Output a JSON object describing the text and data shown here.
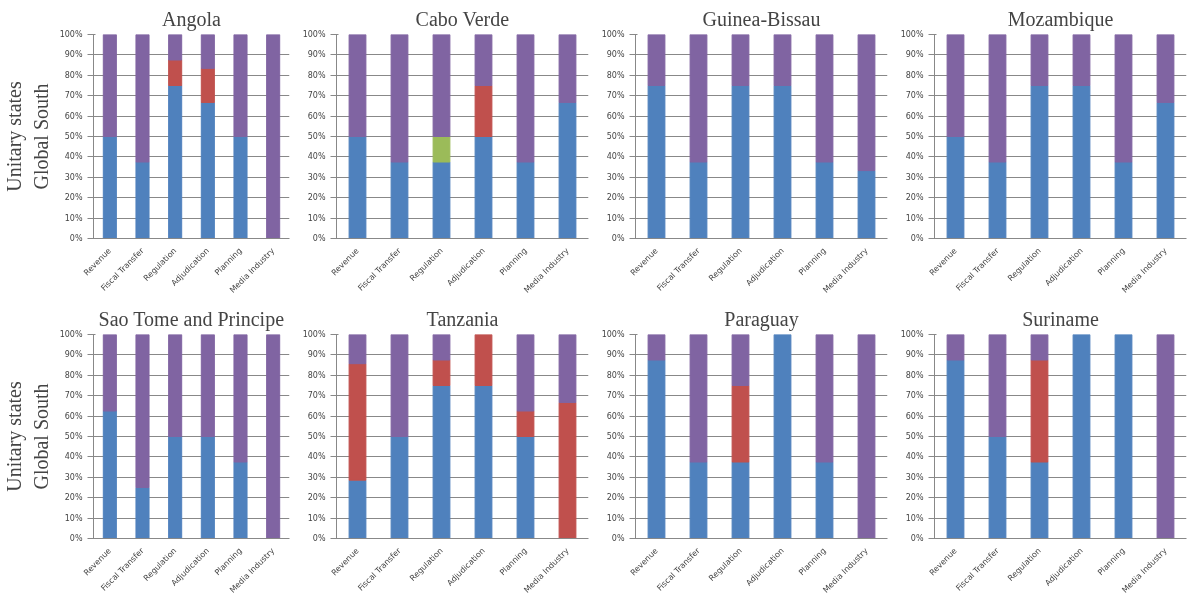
{
  "chart_data": [
    {
      "type": "bar",
      "title": "Angola",
      "ylabel": "Unitary states\nGlobal South",
      "stacked": true,
      "categories": [
        "Revenue",
        "Fiscal Transfer",
        "Regulation",
        "Adjudication",
        "Planning",
        "Media Industry"
      ],
      "ylim": [
        0,
        100
      ],
      "yticks": [
        {
          "value": 0,
          "label": "0%"
        },
        {
          "value": 10,
          "label": "10%"
        },
        {
          "value": 20,
          "label": "20%"
        },
        {
          "value": 30,
          "label": "30%"
        },
        {
          "value": 40,
          "label": "40%"
        },
        {
          "value": 50,
          "label": "50%"
        },
        {
          "value": 60,
          "label": "60%"
        },
        {
          "value": 70,
          "label": "70%"
        },
        {
          "value": 80,
          "label": "80%"
        },
        {
          "value": 90,
          "label": "90%"
        },
        {
          "value": 100,
          "label": "100%"
        }
      ],
      "grid": "y",
      "series": [
        {
          "color": "#4f81bd",
          "values": [
            50,
            37.5,
            75,
            66.7,
            50,
            null
          ]
        },
        {
          "color": "#c0504d",
          "values": [
            null,
            null,
            12.5,
            16.7,
            null,
            null
          ]
        },
        {
          "color": "#8064a2",
          "values": [
            50,
            62.5,
            12.5,
            16.6,
            50,
            100
          ]
        }
      ]
    },
    {
      "type": "bar",
      "title": "Cabo Verde",
      "stacked": true,
      "categories": [
        "Revenue",
        "Fiscal Transfer",
        "Regulation",
        "Adjudication",
        "Planning",
        "Media Industry"
      ],
      "ylim": [
        0,
        100
      ],
      "yticks": [
        {
          "value": 0,
          "label": "0%"
        },
        {
          "value": 10,
          "label": "10%"
        },
        {
          "value": 20,
          "label": "20%"
        },
        {
          "value": 30,
          "label": "30%"
        },
        {
          "value": 40,
          "label": "40%"
        },
        {
          "value": 50,
          "label": "50%"
        },
        {
          "value": 60,
          "label": "60%"
        },
        {
          "value": 70,
          "label": "70%"
        },
        {
          "value": 80,
          "label": "80%"
        },
        {
          "value": 90,
          "label": "90%"
        },
        {
          "value": 100,
          "label": "100%"
        }
      ],
      "grid": "y",
      "series": [
        {
          "color": "#4f81bd",
          "values": [
            50,
            37.5,
            37.5,
            50,
            37.5,
            66.7
          ]
        },
        {
          "color": "#c0504d",
          "values": [
            null,
            null,
            null,
            25,
            null,
            null
          ]
        },
        {
          "color": "#9bbb59",
          "values": [
            null,
            null,
            12.5,
            null,
            null,
            null
          ]
        },
        {
          "color": "#8064a2",
          "values": [
            50,
            62.5,
            50,
            25,
            62.5,
            33.3
          ]
        }
      ]
    },
    {
      "type": "bar",
      "title": "Guinea-Bissau",
      "stacked": true,
      "categories": [
        "Revenue",
        "Fiscal Transfer",
        "Regulation",
        "Adjudication",
        "Planning",
        "Media Industry"
      ],
      "ylim": [
        0,
        100
      ],
      "yticks": [
        {
          "value": 0,
          "label": "0%"
        },
        {
          "value": 10,
          "label": "10%"
        },
        {
          "value": 20,
          "label": "20%"
        },
        {
          "value": 30,
          "label": "30%"
        },
        {
          "value": 40,
          "label": "40%"
        },
        {
          "value": 50,
          "label": "50%"
        },
        {
          "value": 60,
          "label": "60%"
        },
        {
          "value": 70,
          "label": "70%"
        },
        {
          "value": 80,
          "label": "80%"
        },
        {
          "value": 90,
          "label": "90%"
        },
        {
          "value": 100,
          "label": "100%"
        }
      ],
      "grid": "y",
      "series": [
        {
          "color": "#4f81bd",
          "values": [
            75,
            37.5,
            75,
            75,
            37.5,
            33.3
          ]
        },
        {
          "color": "#8064a2",
          "values": [
            25,
            62.5,
            25,
            25,
            62.5,
            66.7
          ]
        }
      ]
    },
    {
      "type": "bar",
      "title": "Mozambique",
      "stacked": true,
      "categories": [
        "Revenue",
        "Fiscal Transfer",
        "Regulation",
        "Adjudication",
        "Planning",
        "Media Industry"
      ],
      "ylim": [
        0,
        100
      ],
      "yticks": [
        {
          "value": 0,
          "label": "0%"
        },
        {
          "value": 10,
          "label": "10%"
        },
        {
          "value": 20,
          "label": "20%"
        },
        {
          "value": 30,
          "label": "30%"
        },
        {
          "value": 40,
          "label": "40%"
        },
        {
          "value": 50,
          "label": "50%"
        },
        {
          "value": 60,
          "label": "60%"
        },
        {
          "value": 70,
          "label": "70%"
        },
        {
          "value": 80,
          "label": "80%"
        },
        {
          "value": 90,
          "label": "90%"
        },
        {
          "value": 100,
          "label": "100%"
        }
      ],
      "grid": "y",
      "series": [
        {
          "color": "#4f81bd",
          "values": [
            50,
            37.5,
            75,
            75,
            37.5,
            66.7
          ]
        },
        {
          "color": "#8064a2",
          "values": [
            50,
            62.5,
            25,
            25,
            62.5,
            33.3
          ]
        }
      ]
    },
    {
      "type": "bar",
      "title": "Sao Tome and Principe",
      "ylabel": "Unitary states\nGlobal South",
      "stacked": true,
      "categories": [
        "Revenue",
        "Fiscal Transfer",
        "Regulation",
        "Adjudication",
        "Planning",
        "Media Industry"
      ],
      "ylim": [
        0,
        100
      ],
      "yticks": [
        {
          "value": 0,
          "label": "0%"
        },
        {
          "value": 10,
          "label": "10%"
        },
        {
          "value": 20,
          "label": "20%"
        },
        {
          "value": 30,
          "label": "30%"
        },
        {
          "value": 40,
          "label": "40%"
        },
        {
          "value": 50,
          "label": "50%"
        },
        {
          "value": 60,
          "label": "60%"
        },
        {
          "value": 70,
          "label": "70%"
        },
        {
          "value": 80,
          "label": "80%"
        },
        {
          "value": 90,
          "label": "90%"
        },
        {
          "value": 100,
          "label": "100%"
        }
      ],
      "grid": "y",
      "series": [
        {
          "color": "#4f81bd",
          "values": [
            62.5,
            25,
            50,
            50,
            37.5,
            null
          ]
        },
        {
          "color": "#8064a2",
          "values": [
            37.5,
            75,
            50,
            50,
            62.5,
            100
          ]
        }
      ]
    },
    {
      "type": "bar",
      "title": "Tanzania",
      "stacked": true,
      "categories": [
        "Revenue",
        "Fiscal Transfer",
        "Regulation",
        "Adjudication",
        "Planning",
        "Media Industry"
      ],
      "ylim": [
        0,
        100
      ],
      "yticks": [
        {
          "value": 0,
          "label": "0%"
        },
        {
          "value": 10,
          "label": "10%"
        },
        {
          "value": 20,
          "label": "20%"
        },
        {
          "value": 30,
          "label": "30%"
        },
        {
          "value": 40,
          "label": "40%"
        },
        {
          "value": 50,
          "label": "50%"
        },
        {
          "value": 60,
          "label": "60%"
        },
        {
          "value": 70,
          "label": "70%"
        },
        {
          "value": 80,
          "label": "80%"
        },
        {
          "value": 90,
          "label": "90%"
        },
        {
          "value": 100,
          "label": "100%"
        }
      ],
      "grid": "y",
      "series": [
        {
          "color": "#4f81bd",
          "values": [
            28.6,
            50,
            75,
            75,
            50,
            null
          ]
        },
        {
          "color": "#c0504d",
          "values": [
            57.1,
            null,
            12.5,
            25,
            12.5,
            66.7
          ]
        },
        {
          "color": "#8064a2",
          "values": [
            14.3,
            50,
            12.5,
            null,
            37.5,
            33.3
          ]
        }
      ]
    },
    {
      "type": "bar",
      "title": "Paraguay",
      "stacked": true,
      "categories": [
        "Revenue",
        "Fiscal Transfer",
        "Regulation",
        "Adjudication",
        "Planning",
        "Media Industry"
      ],
      "ylim": [
        0,
        100
      ],
      "yticks": [
        {
          "value": 0,
          "label": "0%"
        },
        {
          "value": 10,
          "label": "10%"
        },
        {
          "value": 20,
          "label": "20%"
        },
        {
          "value": 30,
          "label": "30%"
        },
        {
          "value": 40,
          "label": "40%"
        },
        {
          "value": 50,
          "label": "50%"
        },
        {
          "value": 60,
          "label": "60%"
        },
        {
          "value": 70,
          "label": "70%"
        },
        {
          "value": 80,
          "label": "80%"
        },
        {
          "value": 90,
          "label": "90%"
        },
        {
          "value": 100,
          "label": "100%"
        }
      ],
      "grid": "y",
      "series": [
        {
          "color": "#4f81bd",
          "values": [
            87.5,
            37.5,
            37.5,
            100,
            37.5,
            null
          ]
        },
        {
          "color": "#c0504d",
          "values": [
            null,
            null,
            37.5,
            null,
            null,
            null
          ]
        },
        {
          "color": "#8064a2",
          "values": [
            12.5,
            62.5,
            25,
            null,
            62.5,
            100
          ]
        }
      ]
    },
    {
      "type": "bar",
      "title": "Suriname",
      "stacked": true,
      "categories": [
        "Revenue",
        "Fiscal Transfer",
        "Regulation",
        "Adjudication",
        "Planning",
        "Media Industry"
      ],
      "ylim": [
        0,
        100
      ],
      "yticks": [
        {
          "value": 0,
          "label": "0%"
        },
        {
          "value": 10,
          "label": "10%"
        },
        {
          "value": 20,
          "label": "20%"
        },
        {
          "value": 30,
          "label": "30%"
        },
        {
          "value": 40,
          "label": "40%"
        },
        {
          "value": 50,
          "label": "50%"
        },
        {
          "value": 60,
          "label": "60%"
        },
        {
          "value": 70,
          "label": "70%"
        },
        {
          "value": 80,
          "label": "80%"
        },
        {
          "value": 90,
          "label": "90%"
        },
        {
          "value": 100,
          "label": "100%"
        }
      ],
      "grid": "y",
      "series": [
        {
          "color": "#4f81bd",
          "values": [
            87.5,
            50,
            37.5,
            100,
            100,
            null
          ]
        },
        {
          "color": "#c0504d",
          "values": [
            null,
            null,
            50,
            null,
            null,
            null
          ]
        },
        {
          "color": "#8064a2",
          "values": [
            12.5,
            50,
            12.5,
            null,
            null,
            100
          ]
        }
      ]
    }
  ]
}
